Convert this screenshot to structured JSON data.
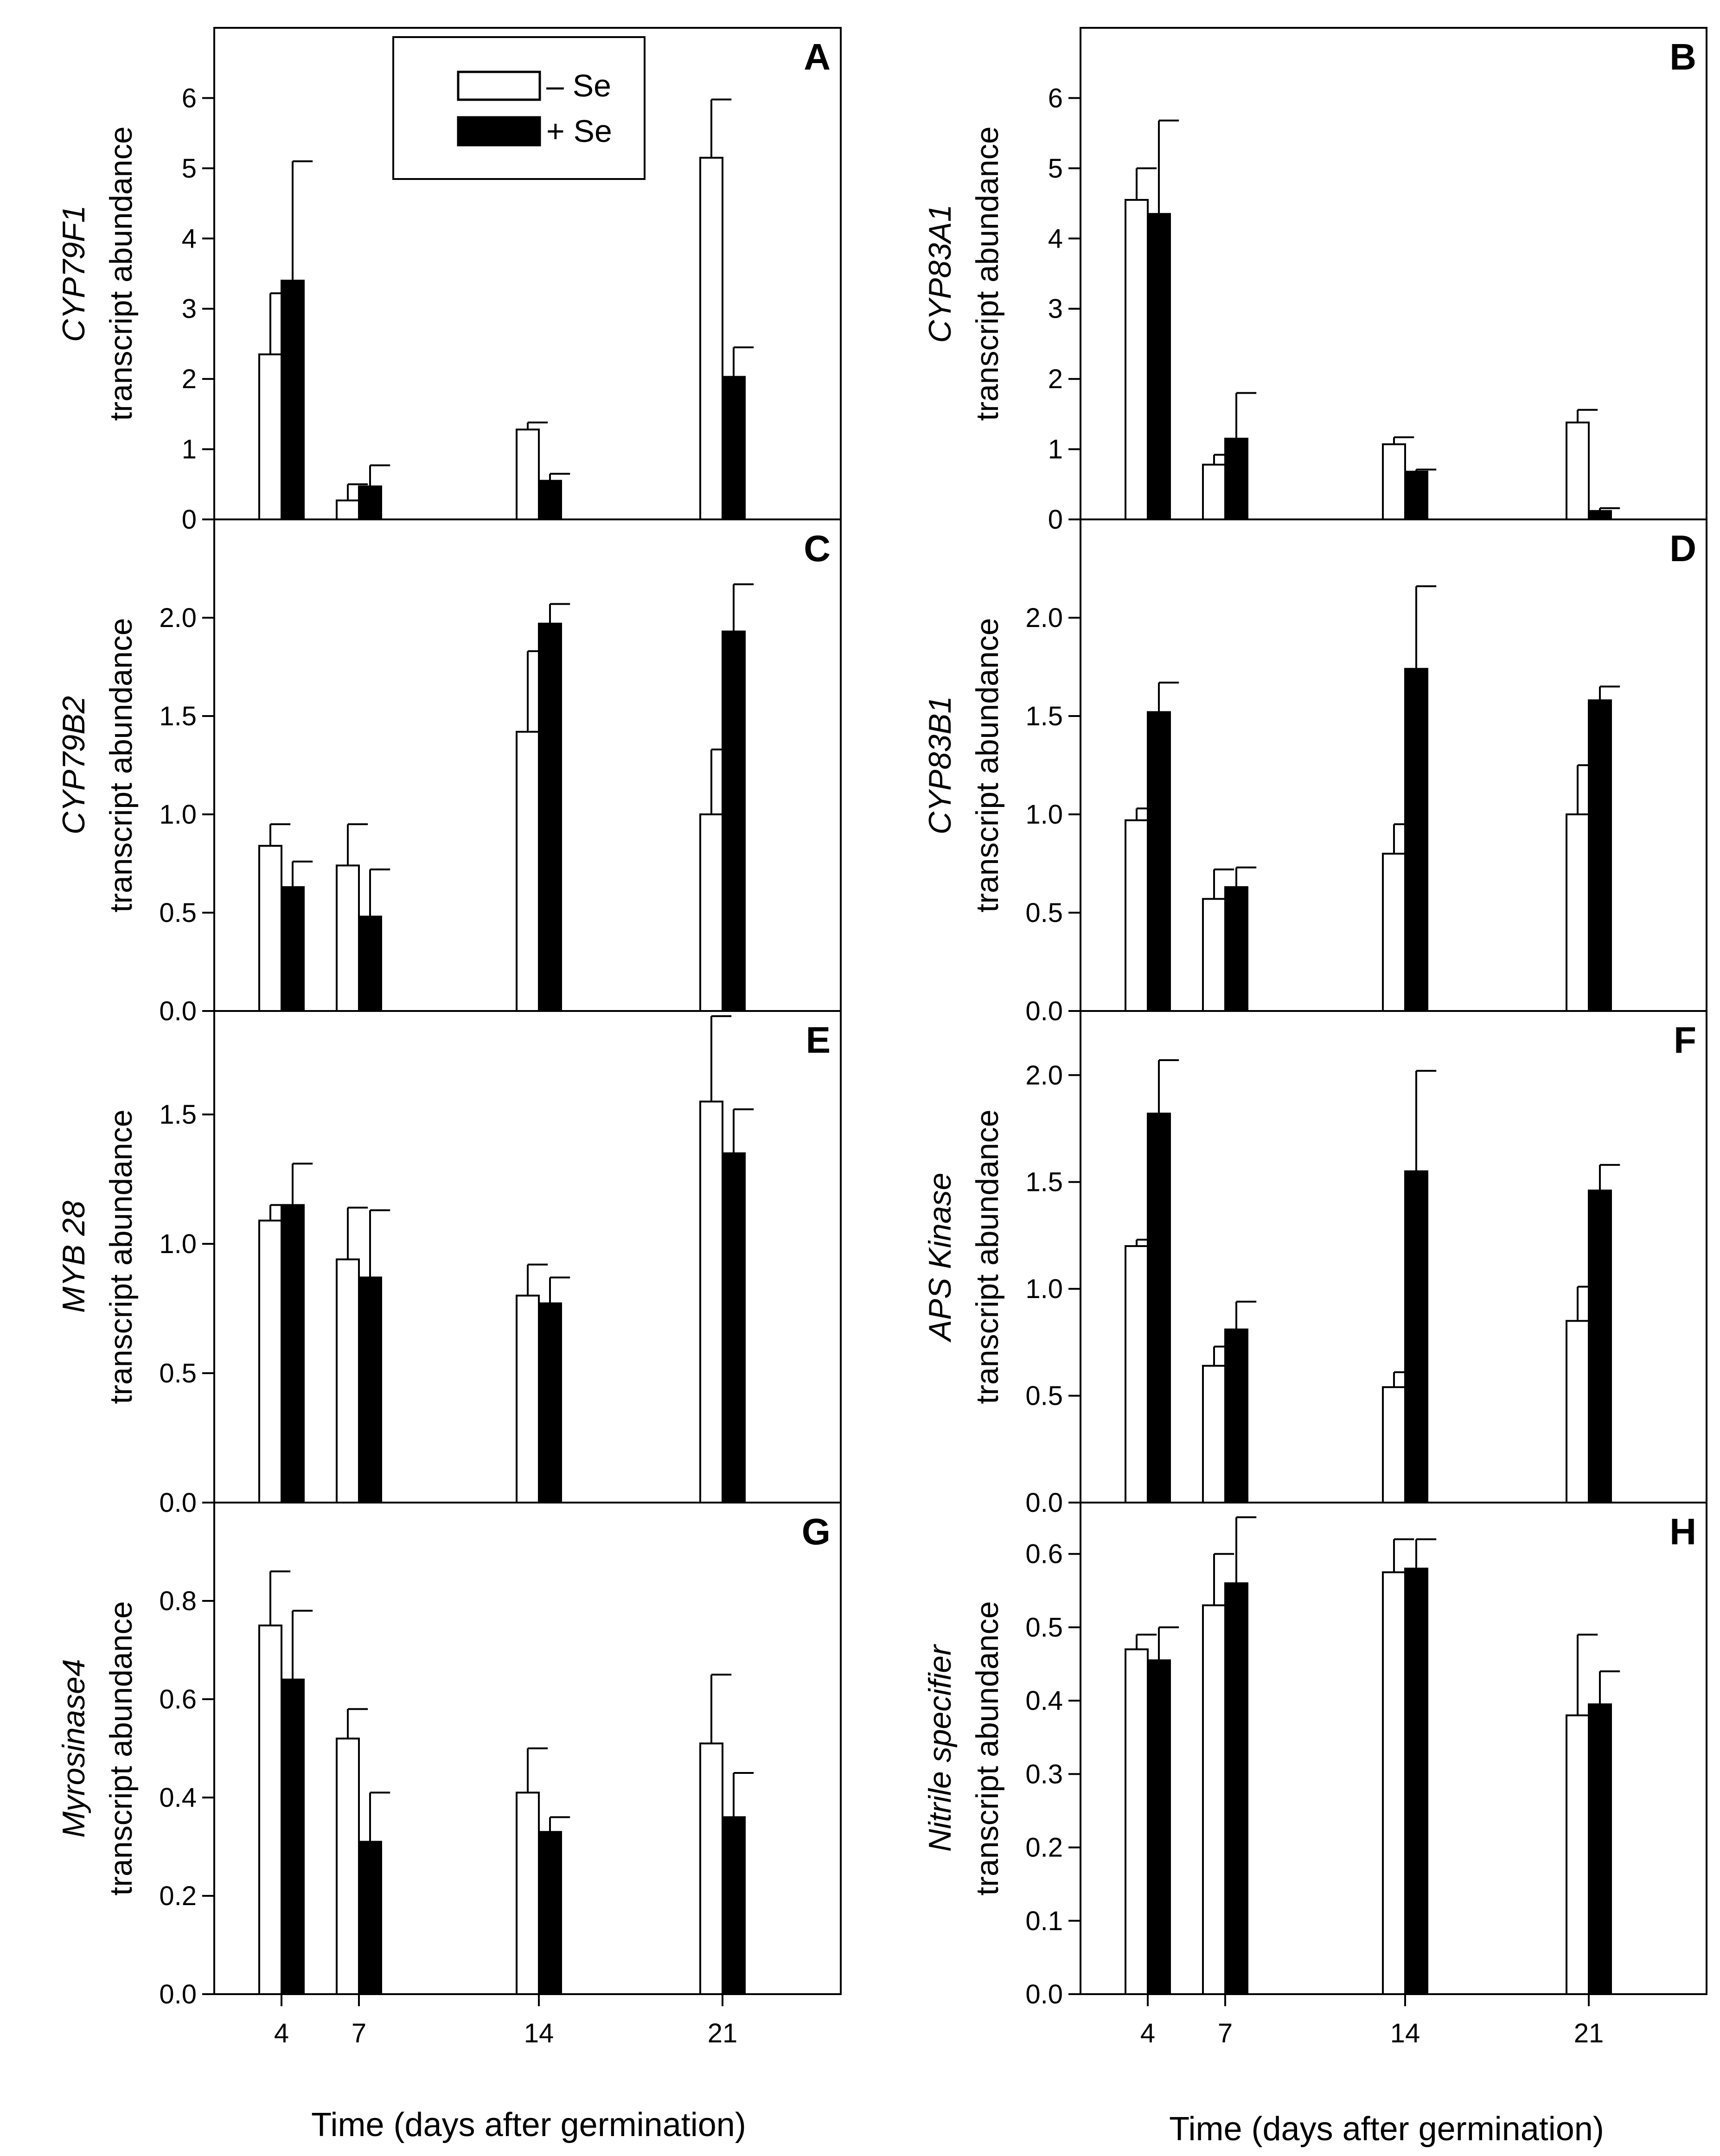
{
  "chart_data": [
    {
      "type": "bar",
      "panel": "A",
      "gene": "CYP79F1",
      "ylabel": "transcript abundance",
      "categories": [
        "4",
        "7",
        "14",
        "21"
      ],
      "ylim": [
        0,
        7
      ],
      "yticks": [
        0,
        1,
        2,
        3,
        4,
        5,
        6
      ],
      "series": [
        {
          "name": "– Se",
          "values": [
            2.35,
            0.27,
            1.28,
            5.15
          ],
          "errors": [
            0.87,
            0.23,
            0.1,
            0.83
          ]
        },
        {
          "name": "+ Se",
          "values": [
            3.4,
            0.47,
            0.55,
            2.03
          ],
          "errors": [
            1.7,
            0.3,
            0.1,
            0.42
          ]
        }
      ]
    },
    {
      "type": "bar",
      "panel": "B",
      "gene": "CYP83A1",
      "ylabel": "transcript abundance",
      "categories": [
        "4",
        "7",
        "14",
        "21"
      ],
      "ylim": [
        0,
        7
      ],
      "yticks": [
        0,
        1,
        2,
        3,
        4,
        5,
        6
      ],
      "series": [
        {
          "name": "– Se",
          "values": [
            4.55,
            0.78,
            1.07,
            1.38
          ],
          "errors": [
            0.45,
            0.14,
            0.1,
            0.18
          ]
        },
        {
          "name": "+ Se",
          "values": [
            4.35,
            1.15,
            0.68,
            0.12
          ],
          "errors": [
            1.33,
            0.65,
            0.03,
            0.04
          ]
        }
      ]
    },
    {
      "type": "bar",
      "panel": "C",
      "gene": "CYP79B2",
      "ylabel": "transcript abundance",
      "categories": [
        "4",
        "7",
        "14",
        "21"
      ],
      "ylim": [
        0,
        2.5
      ],
      "yticks": [
        0.0,
        0.5,
        1.0,
        1.5,
        2.0
      ],
      "series": [
        {
          "name": "– Se",
          "values": [
            0.84,
            0.74,
            1.42,
            1.0
          ],
          "errors": [
            0.11,
            0.21,
            0.41,
            0.33
          ]
        },
        {
          "name": "+ Se",
          "values": [
            0.63,
            0.48,
            1.97,
            1.93
          ],
          "errors": [
            0.13,
            0.24,
            0.1,
            0.24
          ]
        }
      ]
    },
    {
      "type": "bar",
      "panel": "D",
      "gene": "CYP83B1",
      "ylabel": "transcript abundance",
      "categories": [
        "4",
        "7",
        "14",
        "21"
      ],
      "ylim": [
        0,
        2.5
      ],
      "yticks": [
        0.0,
        0.5,
        1.0,
        1.5,
        2.0
      ],
      "series": [
        {
          "name": "– Se",
          "values": [
            0.97,
            0.57,
            0.8,
            1.0
          ],
          "errors": [
            0.06,
            0.15,
            0.15,
            0.25
          ]
        },
        {
          "name": "+ Se",
          "values": [
            1.52,
            0.63,
            1.74,
            1.58
          ],
          "errors": [
            0.15,
            0.1,
            0.42,
            0.07
          ]
        }
      ]
    },
    {
      "type": "bar",
      "panel": "E",
      "gene": "MYB 28",
      "ylabel": "transcript abundance",
      "categories": [
        "4",
        "7",
        "14",
        "21"
      ],
      "ylim": [
        0,
        1.9
      ],
      "yticks": [
        0.0,
        0.5,
        1.0,
        1.5
      ],
      "series": [
        {
          "name": "– Se",
          "values": [
            1.09,
            0.94,
            0.8,
            1.55
          ],
          "errors": [
            0.06,
            0.2,
            0.12,
            0.33
          ]
        },
        {
          "name": "+ Se",
          "values": [
            1.15,
            0.87,
            0.77,
            1.35
          ],
          "errors": [
            0.16,
            0.26,
            0.1,
            0.17
          ]
        }
      ]
    },
    {
      "type": "bar",
      "panel": "F",
      "gene": "APS Kinase",
      "ylabel": "transcript abundance",
      "categories": [
        "4",
        "7",
        "14",
        "21"
      ],
      "ylim": [
        0,
        2.3
      ],
      "yticks": [
        0.0,
        0.5,
        1.0,
        1.5,
        2.0
      ],
      "series": [
        {
          "name": "– Se",
          "values": [
            1.2,
            0.64,
            0.54,
            0.85
          ],
          "errors": [
            0.03,
            0.09,
            0.07,
            0.16
          ]
        },
        {
          "name": "+ Se",
          "values": [
            1.82,
            0.81,
            1.55,
            1.46
          ],
          "errors": [
            0.25,
            0.13,
            0.47,
            0.12
          ]
        }
      ]
    },
    {
      "type": "bar",
      "panel": "G",
      "gene": "Myrosinase4",
      "ylabel": "transcript abundance",
      "categories": [
        "4",
        "7",
        "14",
        "21"
      ],
      "ylim": [
        0,
        1.0
      ],
      "yticks": [
        0.0,
        0.2,
        0.4,
        0.6,
        0.8
      ],
      "series": [
        {
          "name": "– Se",
          "values": [
            0.75,
            0.52,
            0.41,
            0.51
          ],
          "errors": [
            0.11,
            0.06,
            0.09,
            0.14
          ]
        },
        {
          "name": "+ Se",
          "values": [
            0.64,
            0.31,
            0.33,
            0.36
          ],
          "errors": [
            0.14,
            0.1,
            0.03,
            0.09
          ]
        }
      ]
    },
    {
      "type": "bar",
      "panel": "H",
      "gene": "Nitrile specifier",
      "ylabel": "transcript abundance",
      "categories": [
        "4",
        "7",
        "14",
        "21"
      ],
      "ylim": [
        0,
        0.67
      ],
      "yticks": [
        0.0,
        0.1,
        0.2,
        0.3,
        0.4,
        0.5,
        0.6
      ],
      "series": [
        {
          "name": "– Se",
          "values": [
            0.47,
            0.53,
            0.575,
            0.38
          ],
          "errors": [
            0.02,
            0.07,
            0.045,
            0.11
          ]
        },
        {
          "name": "+ Se",
          "values": [
            0.455,
            0.56,
            0.58,
            0.395
          ],
          "errors": [
            0.045,
            0.09,
            0.04,
            0.045
          ]
        }
      ]
    }
  ],
  "legend": {
    "minus_label": "– Se",
    "plus_label": "+ Se",
    "minus_color": "#ffffff",
    "plus_color": "#000000"
  },
  "xlabel_left": "Time (days after germination)",
  "xlabel_right": "Time (days after germination)"
}
